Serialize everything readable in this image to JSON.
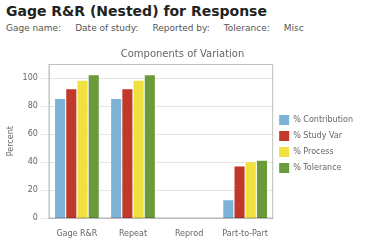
{
  "chart_data": {
    "type": "bar",
    "title": "Gage R&R (Nested) for Response",
    "subtitle": "Components of Variation",
    "annotations": [
      "Gage name:",
      "Date of study:",
      "Reported by:",
      "Tolerance:",
      "Misc"
    ],
    "ylabel": "Percent",
    "categories": [
      "Gage R&R",
      "Repeat",
      "Reprod",
      "Part-to-Part"
    ],
    "series": [
      {
        "name": "% Contribution",
        "color": "#7eb3d8",
        "values": [
          85,
          85,
          0.3,
          13
        ]
      },
      {
        "name": "% Study Var",
        "color": "#c0392b",
        "values": [
          92,
          92,
          0.3,
          37
        ]
      },
      {
        "name": "% Process",
        "color": "#f0e040",
        "values": [
          98,
          98,
          0.3,
          40
        ]
      },
      {
        "name": "% Tolerance",
        "color": "#6a9b3a",
        "values": [
          102,
          102,
          0.3,
          41
        ]
      }
    ],
    "ylim": [
      0,
      110
    ],
    "yticks": [
      0,
      20,
      40,
      60,
      80,
      100
    ],
    "grid": true,
    "legend": "right"
  }
}
